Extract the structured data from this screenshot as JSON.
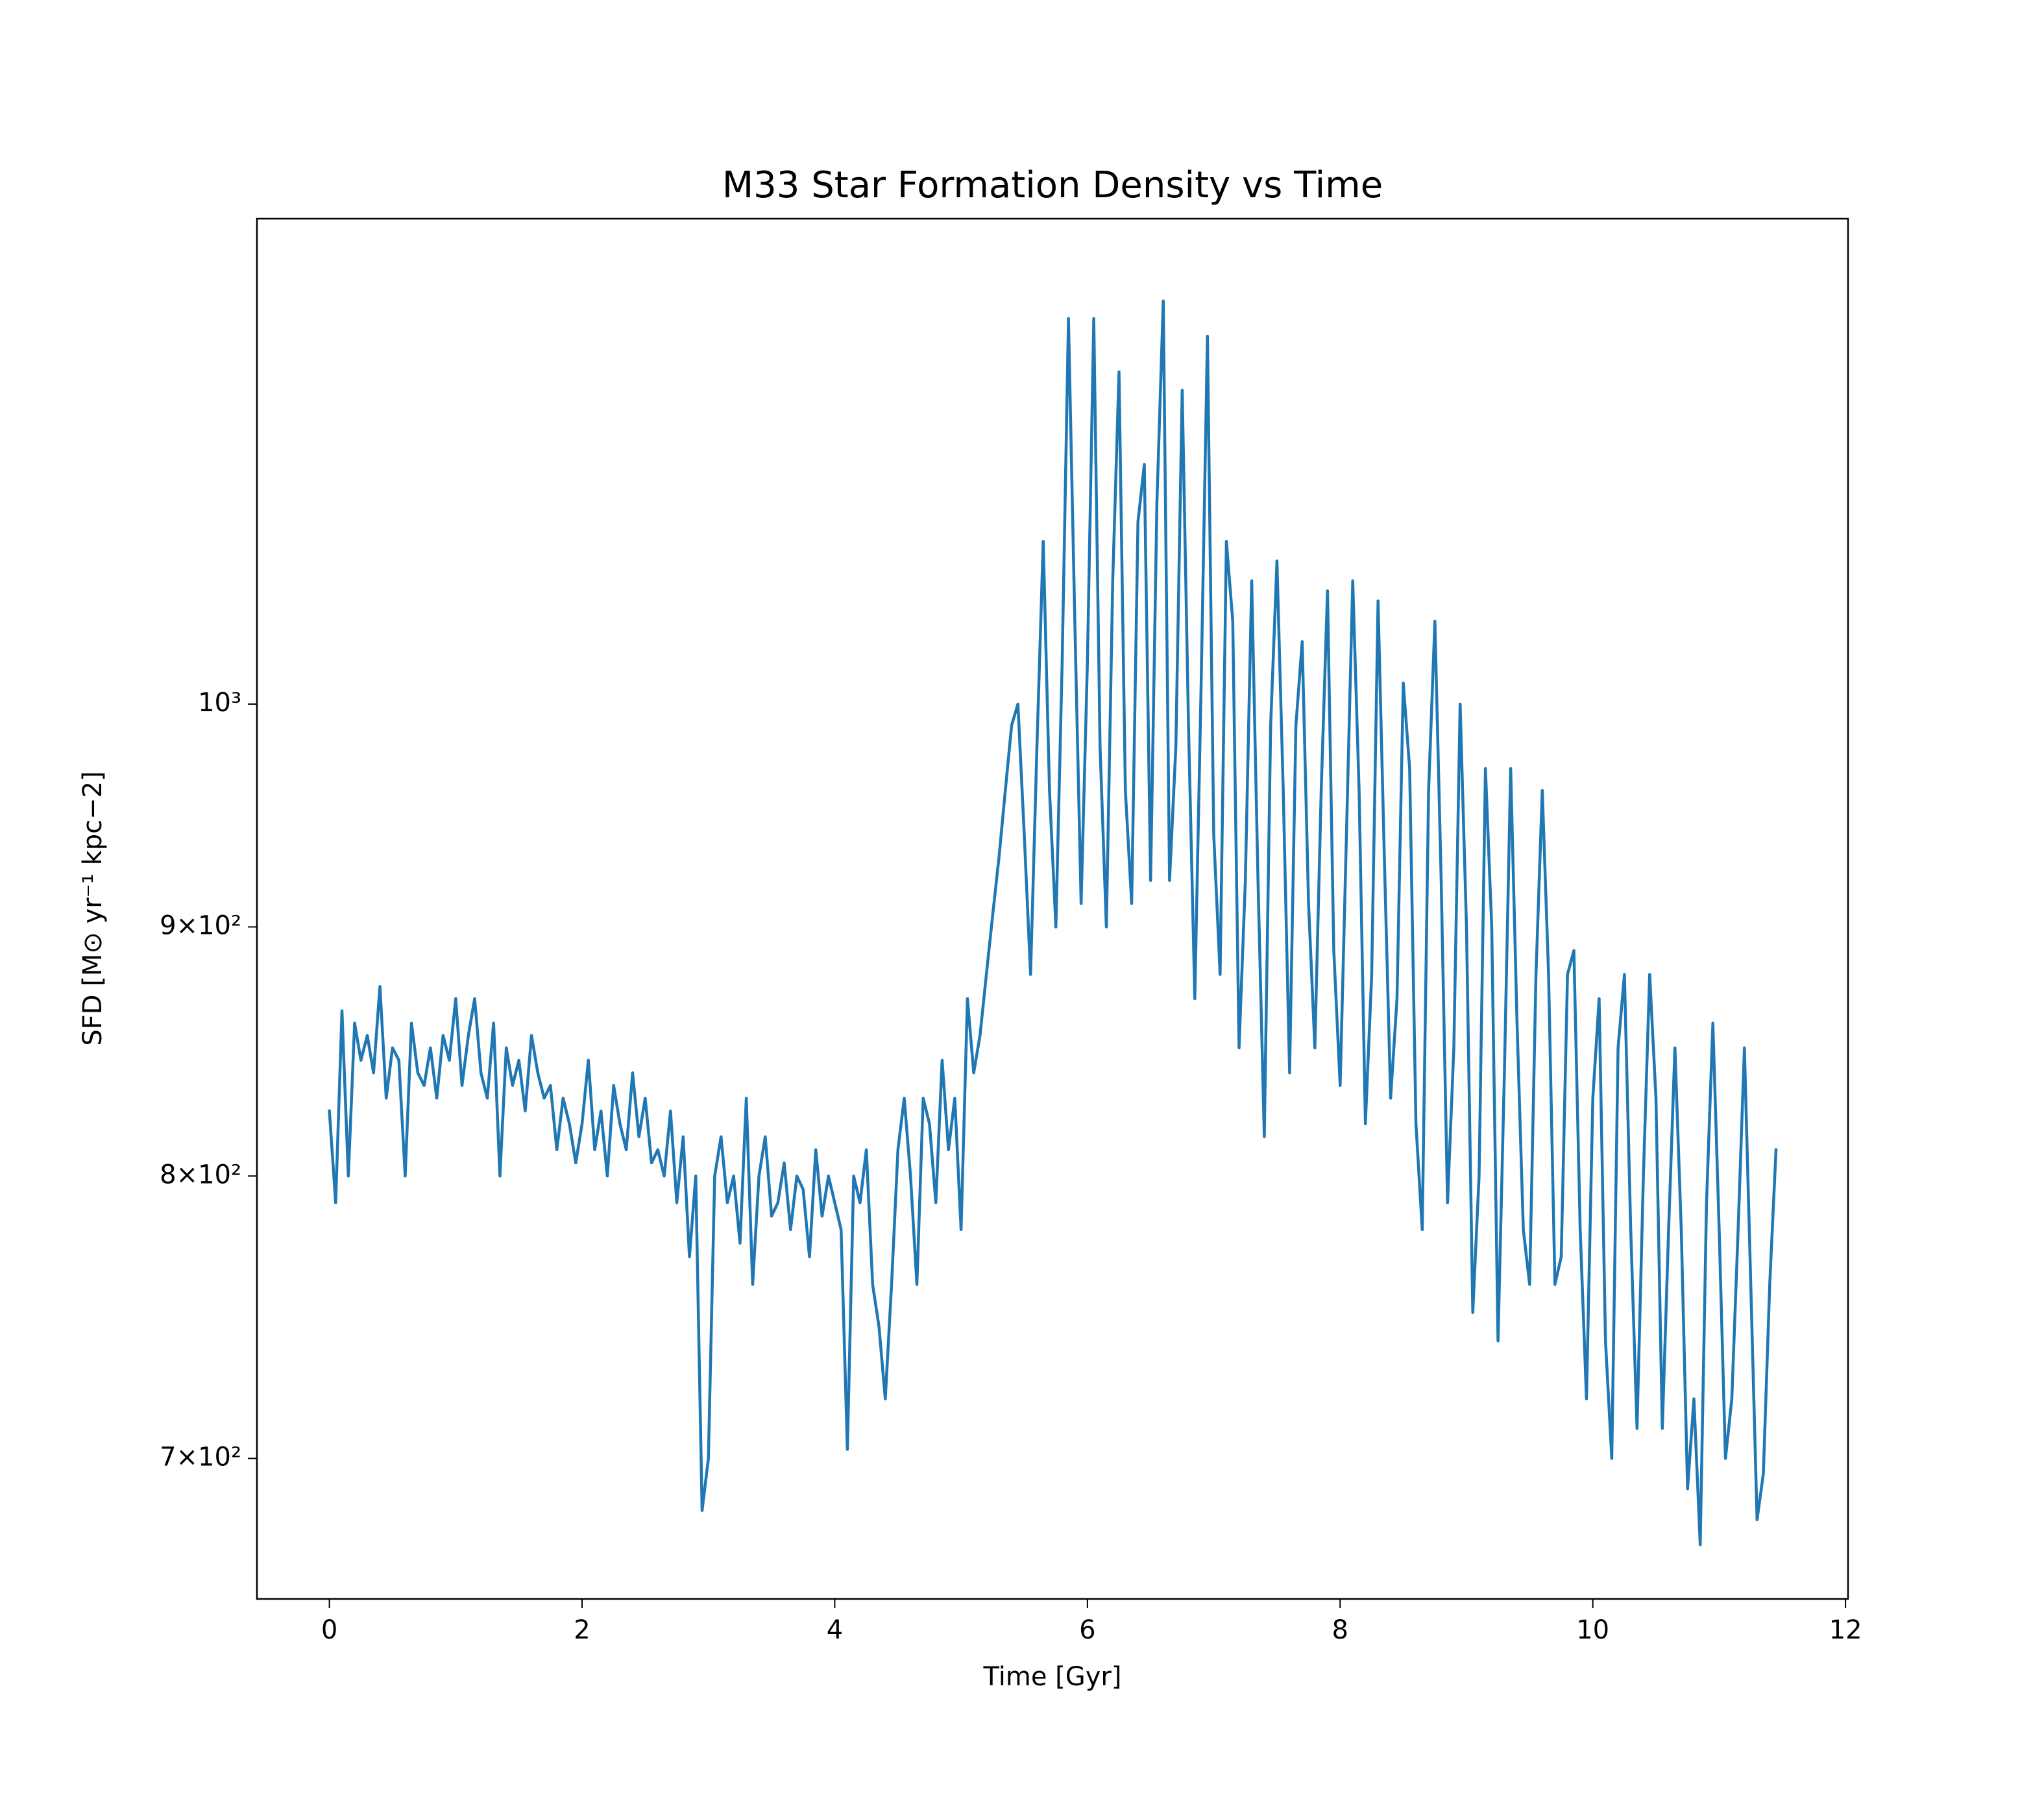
{
  "chart_data": {
    "type": "line",
    "title": "M33 Star Formation Density vs Time",
    "x_label": "Time [Gyr]",
    "y_label": "SFD [M⊙ yr⁻¹ kpc−2]",
    "xlim": [
      -0.573,
      12.02
    ],
    "xticks": [
      0,
      2,
      4,
      6,
      8,
      10,
      12
    ],
    "ylim": [
      655,
      1258
    ],
    "y_scale": "log",
    "yticks": [
      {
        "value": 700,
        "label": "7×10²"
      },
      {
        "value": 800,
        "label": "8×10²"
      },
      {
        "value": 900,
        "label": "9×10²"
      },
      {
        "value": 1000,
        "label": "10³"
      }
    ],
    "grid": false,
    "x": [
      0,
      0.05,
      0.1,
      0.15,
      0.2,
      0.25,
      0.3,
      0.35,
      0.4,
      0.45,
      0.5,
      0.55,
      0.6,
      0.65,
      0.7,
      0.75,
      0.8,
      0.85,
      0.9,
      0.95,
      1,
      1.05,
      1.1,
      1.15,
      1.2,
      1.25,
      1.3,
      1.35,
      1.4,
      1.45,
      1.5,
      1.55,
      1.6,
      1.65,
      1.7,
      1.75,
      1.8,
      1.85,
      1.9,
      1.95,
      2,
      2.05,
      2.1,
      2.15,
      2.2,
      2.25,
      2.3,
      2.35,
      2.4,
      2.45,
      2.5,
      2.55,
      2.6,
      2.65,
      2.7,
      2.75,
      2.8,
      2.85,
      2.9,
      2.95,
      3,
      3.05,
      3.1,
      3.15,
      3.2,
      3.25,
      3.3,
      3.35,
      3.4,
      3.45,
      3.5,
      3.55,
      3.6,
      3.65,
      3.7,
      3.75,
      3.8,
      3.85,
      3.9,
      3.95,
      4,
      4.05,
      4.1,
      4.15,
      4.2,
      4.25,
      4.3,
      4.35,
      4.4,
      4.45,
      4.5,
      4.55,
      4.6,
      4.65,
      4.7,
      4.75,
      4.8,
      4.85,
      4.9,
      4.95,
      5,
      5.05,
      5.1,
      5.15,
      5.2,
      5.25,
      5.3,
      5.35,
      5.4,
      5.45,
      5.5,
      5.55,
      5.6,
      5.65,
      5.7,
      5.75,
      5.8,
      5.85,
      5.9,
      5.95,
      6,
      6.05,
      6.1,
      6.15,
      6.2,
      6.25,
      6.3,
      6.35,
      6.4,
      6.45,
      6.5,
      6.55,
      6.6,
      6.65,
      6.7,
      6.75,
      6.8,
      6.85,
      6.9,
      6.95,
      7,
      7.05,
      7.1,
      7.15,
      7.2,
      7.25,
      7.3,
      7.35,
      7.4,
      7.45,
      7.5,
      7.55,
      7.6,
      7.65,
      7.7,
      7.75,
      7.8,
      7.85,
      7.9,
      7.95,
      8,
      8.05,
      8.1,
      8.15,
      8.2,
      8.25,
      8.3,
      8.35,
      8.4,
      8.45,
      8.5,
      8.55,
      8.6,
      8.65,
      8.7,
      8.75,
      8.8,
      8.85,
      8.9,
      8.95,
      9,
      9.05,
      9.1,
      9.15,
      9.2,
      9.25,
      9.3,
      9.35,
      9.4,
      9.45,
      9.5,
      9.55,
      9.6,
      9.65,
      9.7,
      9.75,
      9.8,
      9.85,
      9.9,
      9.95,
      10,
      10.05,
      10.1,
      10.15,
      10.2,
      10.25,
      10.3,
      10.35,
      10.4,
      10.45,
      10.5,
      10.55,
      10.6,
      10.65,
      10.7,
      10.75,
      10.8,
      10.85,
      10.9,
      10.95,
      11,
      11.05,
      11.1,
      11.15,
      11.2,
      11.25,
      11.3,
      11.35,
      11.4,
      11.45
    ],
    "series": [
      {
        "color": "#1f77b4",
        "values": [
          825,
          790,
          865,
          800,
          860,
          845,
          855,
          840,
          875,
          830,
          850,
          845,
          800,
          860,
          840,
          835,
          850,
          830,
          855,
          845,
          870,
          835,
          855,
          870,
          840,
          830,
          860,
          800,
          850,
          835,
          845,
          825,
          855,
          840,
          830,
          835,
          810,
          830,
          820,
          805,
          820,
          845,
          810,
          825,
          800,
          835,
          820,
          810,
          840,
          815,
          830,
          805,
          810,
          800,
          825,
          790,
          815,
          770,
          800,
          683,
          700,
          800,
          815,
          790,
          800,
          775,
          830,
          760,
          800,
          815,
          785,
          790,
          805,
          780,
          800,
          795,
          770,
          810,
          785,
          800,
          790,
          780,
          703,
          800,
          790,
          810,
          760,
          745,
          720,
          760,
          810,
          830,
          800,
          760,
          830,
          820,
          790,
          845,
          810,
          830,
          780,
          870,
          840,
          855,
          880,
          905,
          930,
          960,
          990,
          1000,
          940,
          880,
          980,
          1080,
          960,
          900,
          1020,
          1200,
          1040,
          910,
          1020,
          1200,
          980,
          900,
          1060,
          1170,
          960,
          910,
          1090,
          1120,
          920,
          1100,
          1210,
          920,
          980,
          1160,
          990,
          870,
          1010,
          1190,
          940,
          880,
          1080,
          1040,
          850,
          920,
          1060,
          920,
          815,
          990,
          1070,
          960,
          840,
          990,
          1030,
          910,
          850,
          960,
          1055,
          890,
          835,
          940,
          1060,
          960,
          820,
          880,
          1050,
          930,
          830,
          870,
          1010,
          970,
          820,
          780,
          960,
          1040,
          920,
          790,
          850,
          1000,
          900,
          750,
          800,
          970,
          900,
          740,
          840,
          970,
          860,
          780,
          760,
          880,
          960,
          880,
          760,
          770,
          880,
          890,
          780,
          720,
          830,
          870,
          740,
          700,
          850,
          880,
          780,
          710,
          800,
          880,
          830,
          710,
          780,
          850,
          780,
          690,
          720,
          672,
          790,
          860,
          780,
          700,
          720,
          780,
          850,
          760,
          680,
          695,
          760,
          810
        ]
      }
    ]
  }
}
